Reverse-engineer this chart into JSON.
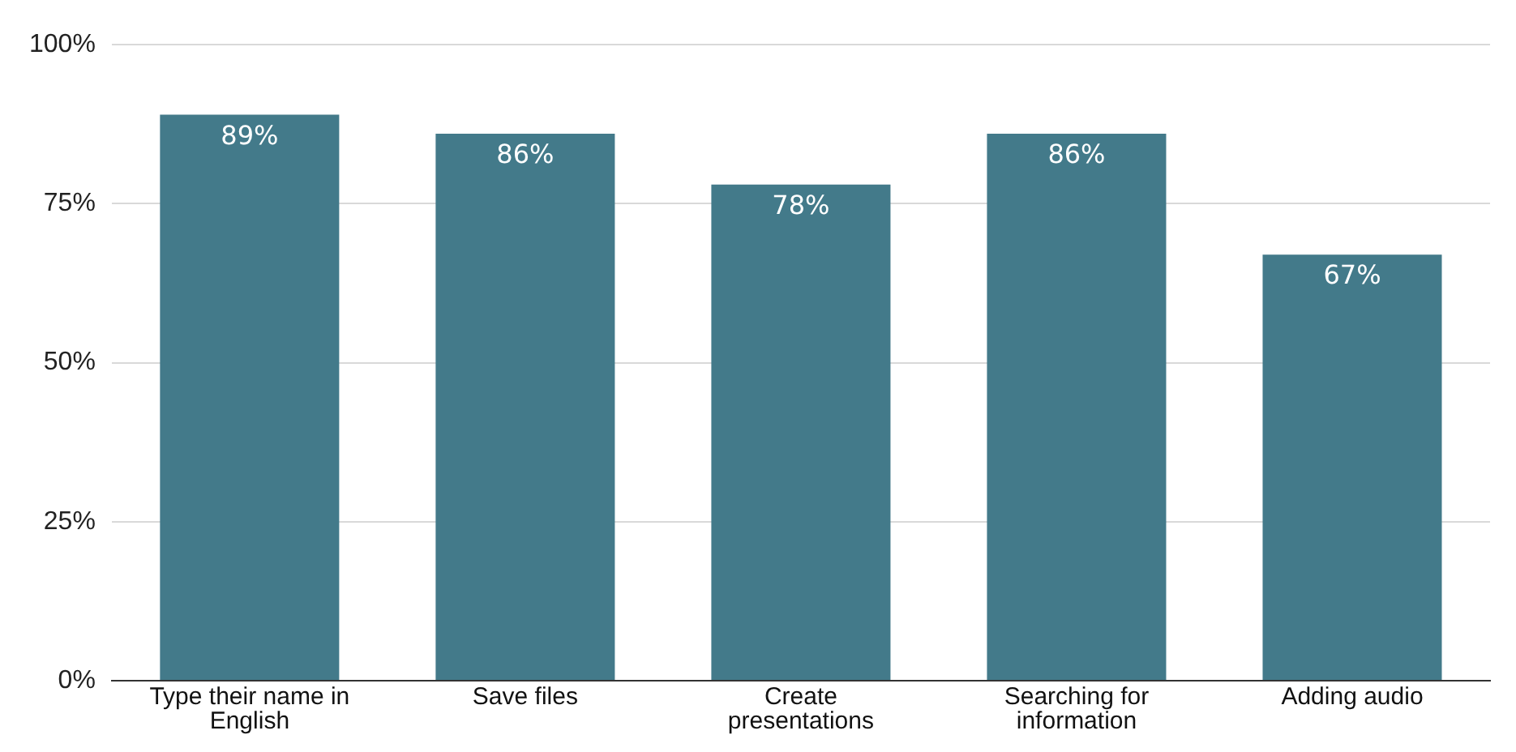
{
  "chart_data": {
    "type": "bar",
    "categories": [
      "Type their name in English",
      "Save files",
      "Create presentations",
      "Searching for information",
      "Adding audio"
    ],
    "values": [
      89,
      86,
      78,
      86,
      67
    ],
    "value_labels": [
      "89%",
      "86%",
      "78%",
      "86%",
      "67%"
    ],
    "color": "#437a8a",
    "ylim": [
      0,
      100
    ],
    "yticks": [
      {
        "value": 0,
        "label": "0%"
      },
      {
        "value": 25,
        "label": "25%"
      },
      {
        "value": 50,
        "label": "50%"
      },
      {
        "value": 75,
        "label": "75%"
      },
      {
        "value": 100,
        "label": "100%"
      }
    ],
    "grid": "y",
    "legend": false
  }
}
